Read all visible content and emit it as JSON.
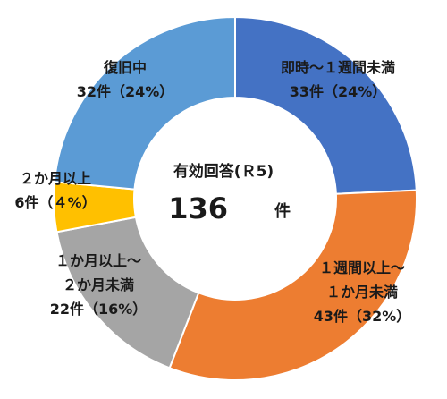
{
  "chart_data": {
    "type": "pie",
    "style": "donut",
    "center": {
      "title": "有効回答(Ｒ5)",
      "value": "136",
      "unit": "件"
    },
    "slices": [
      {
        "lines": [
          "即時～１週間未満",
          "33件（24%）"
        ],
        "count": 33,
        "percent": 24,
        "color": "#4472C4"
      },
      {
        "lines": [
          "１週間以上～",
          "１か月未満",
          "43件（32%）"
        ],
        "count": 43,
        "percent": 32,
        "color": "#ED7D31"
      },
      {
        "lines": [
          "１か月以上～",
          "２か月未満",
          "22件（16%）"
        ],
        "count": 22,
        "percent": 16,
        "color": "#A5A5A5"
      },
      {
        "lines": [
          "２か月以上",
          "6件（４%）"
        ],
        "count": 6,
        "percent": 4,
        "color": "#FFC000"
      },
      {
        "lines": [
          "復旧中",
          "32件（24%）"
        ],
        "count": 32,
        "percent": 24,
        "color": "#5B9BD5"
      }
    ]
  }
}
